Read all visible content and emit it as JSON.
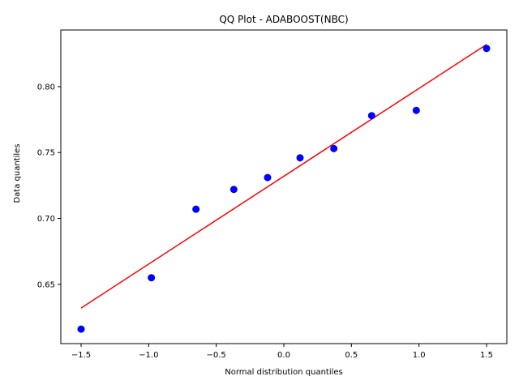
{
  "chart_data": {
    "type": "scatter",
    "title": "QQ Plot - ADABOOST(NBC)",
    "xlabel": "Normal distribution quantiles",
    "ylabel": "Data quantiles",
    "xlim": [
      -1.65,
      1.65
    ],
    "ylim": [
      0.605,
      0.843
    ],
    "xticks": [
      -1.5,
      -1.0,
      -0.5,
      0.0,
      0.5,
      1.0,
      1.5
    ],
    "xtick_labels": [
      "−1.5",
      "−1.0",
      "−0.5",
      "0.0",
      "0.5",
      "1.0",
      "1.5"
    ],
    "yticks": [
      0.65,
      0.7,
      0.75,
      0.8
    ],
    "ytick_labels": [
      "0.65",
      "0.70",
      "0.75",
      "0.80"
    ],
    "grid": false,
    "series": [
      {
        "type": "scatter",
        "color": "#0000ff",
        "x": [
          -1.5,
          -0.98,
          -0.65,
          -0.37,
          -0.12,
          0.12,
          0.37,
          0.65,
          0.98,
          1.5
        ],
        "y": [
          0.616,
          0.655,
          0.707,
          0.722,
          0.731,
          0.746,
          0.753,
          0.778,
          0.782,
          0.829
        ]
      },
      {
        "type": "line",
        "color": "#ff0000",
        "x": [
          -1.5,
          1.5
        ],
        "y": [
          0.632,
          0.832
        ]
      }
    ]
  }
}
